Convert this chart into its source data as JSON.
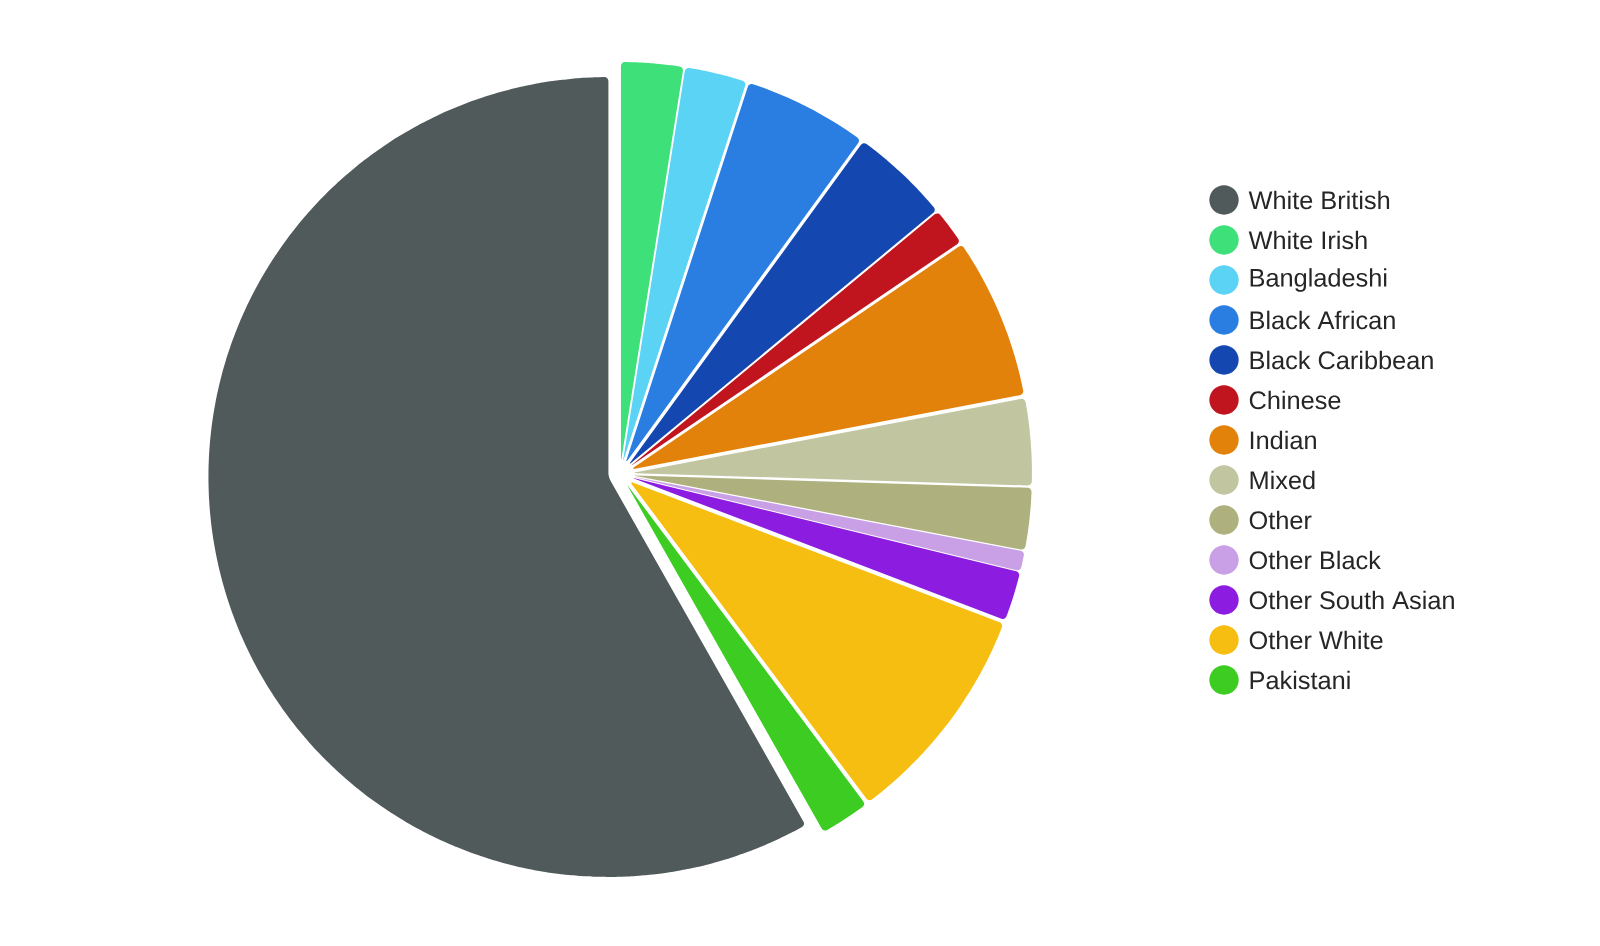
{
  "chart_data": {
    "type": "pie",
    "categories": [
      "White British",
      "White Irish",
      "Bangladeshi",
      "Black African",
      "Black Caribbean",
      "Chinese",
      "Indian",
      "Mixed",
      "Other",
      "Other Black",
      "Other South Asian",
      "Other White",
      "Pakistani"
    ],
    "values": [
      58.2,
      2.5,
      2.5,
      5,
      4,
      1.5,
      6.5,
      3.5,
      2.5,
      0.8,
      2,
      9,
      2
    ],
    "colors": [
      "#505a5a",
      "#3ee07a",
      "#5bd3f5",
      "#2a7de1",
      "#1448b0",
      "#c0141e",
      "#e3820a",
      "#c2c6a0",
      "#aeb07e",
      "#c9a0e6",
      "#8c1de0",
      "#f7be12",
      "#3ccc22"
    ],
    "legend": "right"
  }
}
